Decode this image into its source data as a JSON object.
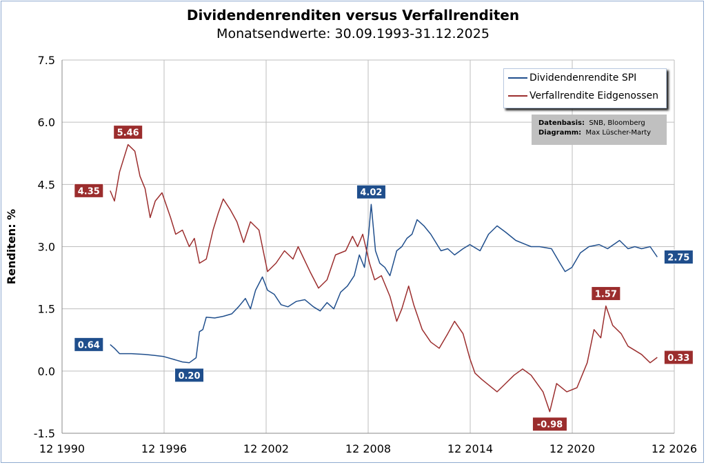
{
  "chart_data": {
    "type": "line",
    "title": "Dividendenrenditen versus Verfallrenditen",
    "subtitle": "Monatsendwerte: 30.09.1993-31.12.2025",
    "ylabel": "Renditen: %",
    "xlabel": "",
    "xlim": [
      "12 1990",
      "12 2026"
    ],
    "ylim": [
      -1.5,
      7.5
    ],
    "yticks": [
      "7.5",
      "6.0",
      "4.5",
      "3.0",
      "1.5",
      "0.0",
      "-1.5"
    ],
    "xticks": [
      "12 1990",
      "12 1996",
      "12 2002",
      "12 2008",
      "12 2014",
      "12 2020",
      "12 2026"
    ],
    "grid": true,
    "legend_position": "top-right",
    "source": {
      "label1": "Datenbasis:",
      "value1": "SNB, Bloomberg",
      "label2": "Diagramm:",
      "value2": "Max Lüscher-Marty"
    },
    "series": [
      {
        "name": "Dividendenrendite SPI",
        "color": "#1f4e8c",
        "points": [
          [
            1993.75,
            0.64
          ],
          [
            1994.0,
            0.55
          ],
          [
            1994.3,
            0.42
          ],
          [
            1995.0,
            0.42
          ],
          [
            1995.8,
            0.4
          ],
          [
            1996.3,
            0.38
          ],
          [
            1996.9,
            0.35
          ],
          [
            1997.5,
            0.28
          ],
          [
            1998.0,
            0.22
          ],
          [
            1998.4,
            0.2
          ],
          [
            1998.8,
            0.32
          ],
          [
            1999.0,
            0.95
          ],
          [
            1999.2,
            1.0
          ],
          [
            1999.4,
            1.3
          ],
          [
            1999.9,
            1.28
          ],
          [
            2000.4,
            1.32
          ],
          [
            2000.9,
            1.38
          ],
          [
            2001.3,
            1.55
          ],
          [
            2001.7,
            1.75
          ],
          [
            2002.0,
            1.5
          ],
          [
            2002.3,
            1.95
          ],
          [
            2002.7,
            2.27
          ],
          [
            2003.0,
            1.95
          ],
          [
            2003.4,
            1.85
          ],
          [
            2003.8,
            1.6
          ],
          [
            2004.2,
            1.55
          ],
          [
            2004.7,
            1.68
          ],
          [
            2005.2,
            1.72
          ],
          [
            2005.7,
            1.55
          ],
          [
            2006.1,
            1.45
          ],
          [
            2006.5,
            1.65
          ],
          [
            2006.9,
            1.5
          ],
          [
            2007.3,
            1.9
          ],
          [
            2007.7,
            2.05
          ],
          [
            2008.1,
            2.3
          ],
          [
            2008.4,
            2.8
          ],
          [
            2008.7,
            2.5
          ],
          [
            2008.95,
            3.3
          ],
          [
            2009.1,
            4.02
          ],
          [
            2009.35,
            2.9
          ],
          [
            2009.6,
            2.6
          ],
          [
            2009.9,
            2.5
          ],
          [
            2010.2,
            2.3
          ],
          [
            2010.6,
            2.9
          ],
          [
            2010.9,
            3.0
          ],
          [
            2011.2,
            3.2
          ],
          [
            2011.5,
            3.3
          ],
          [
            2011.8,
            3.65
          ],
          [
            2012.2,
            3.5
          ],
          [
            2012.6,
            3.3
          ],
          [
            2013.2,
            2.9
          ],
          [
            2013.6,
            2.95
          ],
          [
            2014.0,
            2.8
          ],
          [
            2014.5,
            2.95
          ],
          [
            2014.9,
            3.05
          ],
          [
            2015.5,
            2.9
          ],
          [
            2016.0,
            3.3
          ],
          [
            2016.5,
            3.5
          ],
          [
            2017.0,
            3.35
          ],
          [
            2017.6,
            3.15
          ],
          [
            2018.5,
            3.0
          ],
          [
            2019.0,
            3.0
          ],
          [
            2019.7,
            2.95
          ],
          [
            2020.2,
            2.6
          ],
          [
            2020.5,
            2.4
          ],
          [
            2020.9,
            2.5
          ],
          [
            2021.4,
            2.85
          ],
          [
            2021.9,
            3.0
          ],
          [
            2022.5,
            3.05
          ],
          [
            2023.0,
            2.95
          ],
          [
            2023.7,
            3.15
          ],
          [
            2024.2,
            2.95
          ],
          [
            2024.6,
            3.0
          ],
          [
            2025.0,
            2.95
          ],
          [
            2025.5,
            3.0
          ],
          [
            2025.92,
            2.75
          ]
        ]
      },
      {
        "name": "Verfallrendite Eidgenossen",
        "color": "#9b2d2d",
        "points": [
          [
            1993.75,
            4.35
          ],
          [
            1994.0,
            4.1
          ],
          [
            1994.3,
            4.8
          ],
          [
            1994.8,
            5.46
          ],
          [
            1995.2,
            5.3
          ],
          [
            1995.5,
            4.7
          ],
          [
            1995.8,
            4.4
          ],
          [
            1996.1,
            3.7
          ],
          [
            1996.4,
            4.1
          ],
          [
            1996.8,
            4.3
          ],
          [
            1997.3,
            3.7
          ],
          [
            1997.6,
            3.3
          ],
          [
            1998.0,
            3.4
          ],
          [
            1998.4,
            3.0
          ],
          [
            1998.7,
            3.2
          ],
          [
            1999.0,
            2.6
          ],
          [
            1999.4,
            2.7
          ],
          [
            1999.8,
            3.4
          ],
          [
            2000.1,
            3.8
          ],
          [
            2000.4,
            4.15
          ],
          [
            2000.8,
            3.9
          ],
          [
            2001.2,
            3.6
          ],
          [
            2001.6,
            3.1
          ],
          [
            2002.0,
            3.6
          ],
          [
            2002.5,
            3.4
          ],
          [
            2003.0,
            2.4
          ],
          [
            2003.5,
            2.6
          ],
          [
            2004.0,
            2.9
          ],
          [
            2004.5,
            2.7
          ],
          [
            2004.8,
            3.0
          ],
          [
            2005.5,
            2.4
          ],
          [
            2006.0,
            2.0
          ],
          [
            2006.5,
            2.2
          ],
          [
            2007.0,
            2.8
          ],
          [
            2007.6,
            2.9
          ],
          [
            2008.0,
            3.25
          ],
          [
            2008.3,
            3.0
          ],
          [
            2008.6,
            3.3
          ],
          [
            2009.0,
            2.6
          ],
          [
            2009.3,
            2.2
          ],
          [
            2009.7,
            2.3
          ],
          [
            2010.2,
            1.8
          ],
          [
            2010.6,
            1.2
          ],
          [
            2010.9,
            1.5
          ],
          [
            2011.3,
            2.05
          ],
          [
            2011.6,
            1.6
          ],
          [
            2012.1,
            1.0
          ],
          [
            2012.6,
            0.7
          ],
          [
            2013.1,
            0.55
          ],
          [
            2013.6,
            0.9
          ],
          [
            2014.0,
            1.2
          ],
          [
            2014.5,
            0.9
          ],
          [
            2014.9,
            0.3
          ],
          [
            2015.2,
            -0.05
          ],
          [
            2015.6,
            -0.2
          ],
          [
            2016.5,
            -0.5
          ],
          [
            2017.0,
            -0.3
          ],
          [
            2017.5,
            -0.1
          ],
          [
            2018.0,
            0.05
          ],
          [
            2018.5,
            -0.1
          ],
          [
            2019.2,
            -0.5
          ],
          [
            2019.6,
            -0.98
          ],
          [
            2020.0,
            -0.3
          ],
          [
            2020.6,
            -0.5
          ],
          [
            2021.2,
            -0.4
          ],
          [
            2021.8,
            0.2
          ],
          [
            2022.2,
            1.0
          ],
          [
            2022.6,
            0.8
          ],
          [
            2022.9,
            1.57
          ],
          [
            2023.3,
            1.1
          ],
          [
            2023.8,
            0.9
          ],
          [
            2024.2,
            0.6
          ],
          [
            2024.6,
            0.5
          ],
          [
            2025.0,
            0.4
          ],
          [
            2025.5,
            0.2
          ],
          [
            2025.92,
            0.33
          ]
        ]
      }
    ],
    "annotations": [
      {
        "text": "4.35",
        "series": 1,
        "x": 1993.75,
        "y": 4.35,
        "pos": "left"
      },
      {
        "text": "5.46",
        "series": 1,
        "x": 1994.8,
        "y": 5.46,
        "pos": "above"
      },
      {
        "text": "0.64",
        "series": 0,
        "x": 1993.75,
        "y": 0.64,
        "pos": "left"
      },
      {
        "text": "0.20",
        "series": 0,
        "x": 1998.4,
        "y": 0.2,
        "pos": "below"
      },
      {
        "text": "4.02",
        "series": 0,
        "x": 2009.1,
        "y": 4.02,
        "pos": "above"
      },
      {
        "text": "2.75",
        "series": 0,
        "x": 2025.92,
        "y": 2.75,
        "pos": "right"
      },
      {
        "text": "1.57",
        "series": 1,
        "x": 2022.9,
        "y": 1.57,
        "pos": "above"
      },
      {
        "text": "-0.98",
        "series": 1,
        "x": 2019.6,
        "y": -0.98,
        "pos": "below"
      },
      {
        "text": "0.33",
        "series": 1,
        "x": 2025.92,
        "y": 0.33,
        "pos": "right"
      }
    ]
  }
}
